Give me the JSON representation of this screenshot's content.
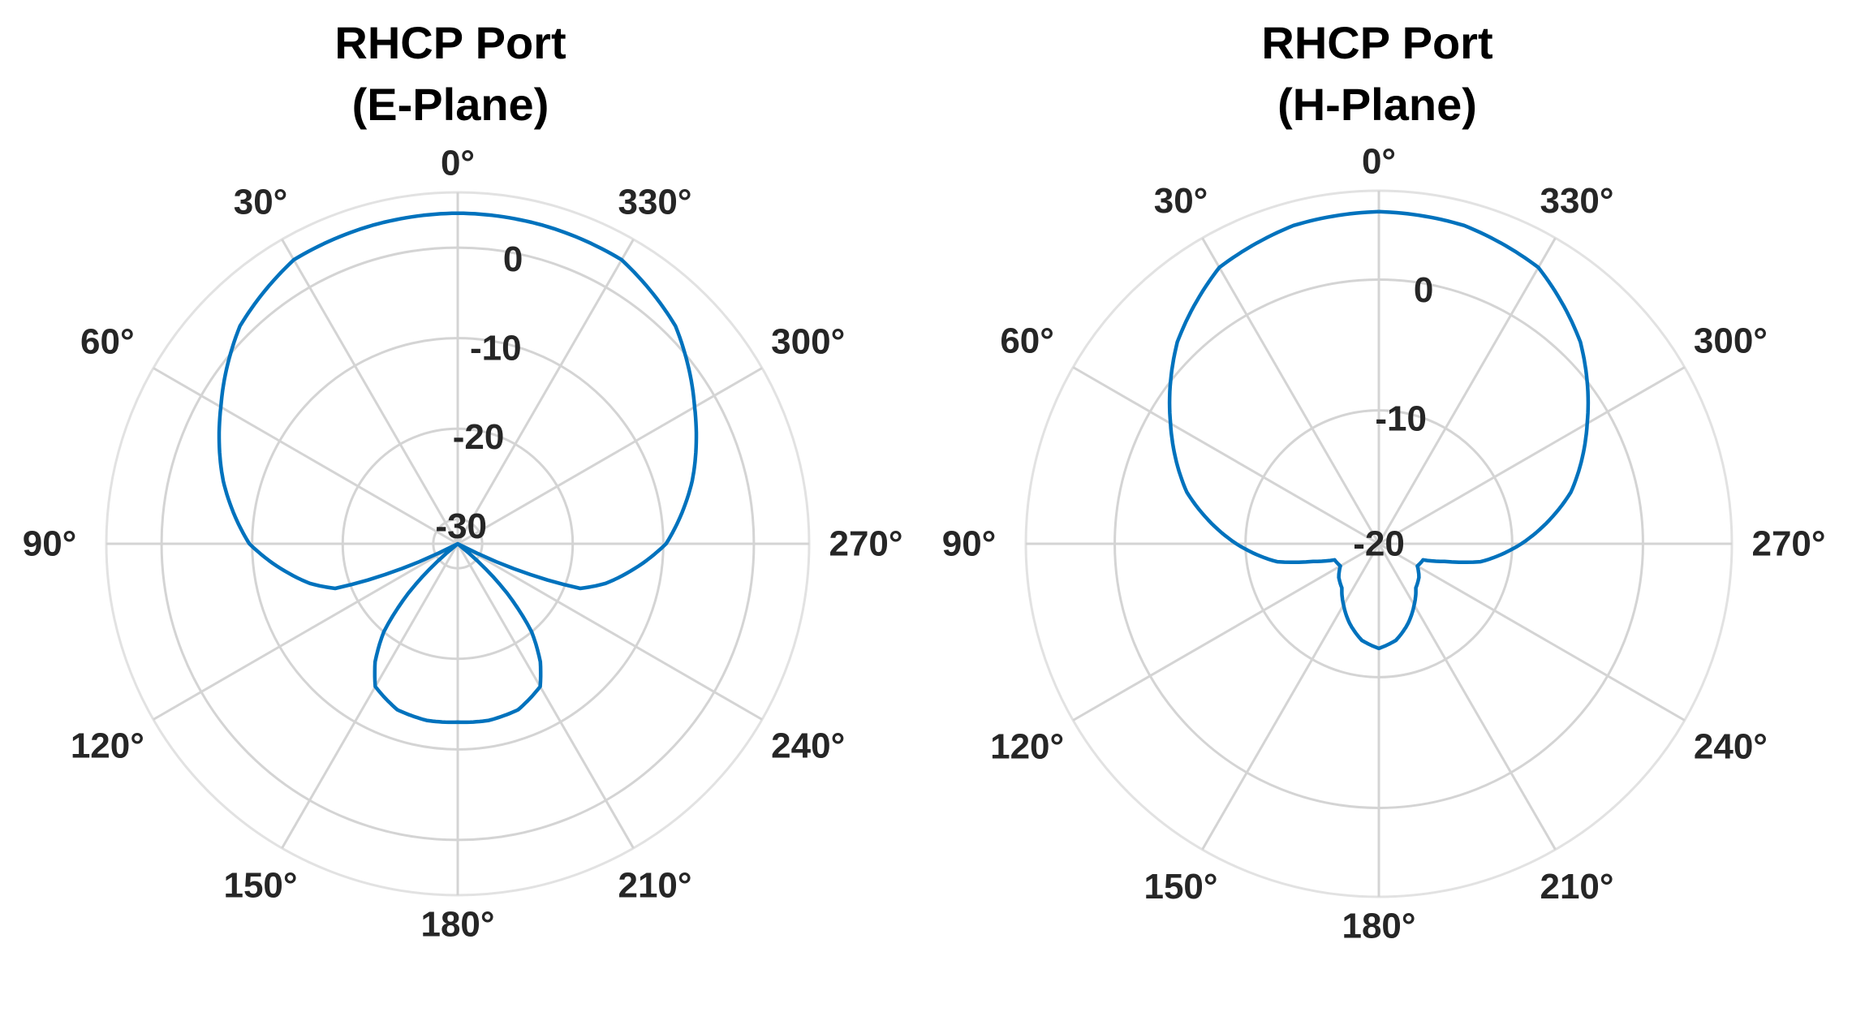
{
  "chart_data": [
    {
      "type": "polar-line",
      "title_line1": "RHCP Port",
      "title_line2": "(E-Plane)",
      "theta_zero": "top",
      "theta_direction": "counterclockwise",
      "theta_ticks": [
        0,
        30,
        60,
        90,
        120,
        150,
        180,
        210,
        240,
        270,
        300,
        330
      ],
      "theta_tick_labels": [
        "0°",
        "30°",
        "60°",
        "90°",
        "120°",
        "150°",
        "180°",
        "210°",
        "240°",
        "270°",
        "300°",
        "330°"
      ],
      "rlim": [
        -32.7,
        6.1
      ],
      "r_ticks": [
        -30,
        -20,
        -10,
        0
      ],
      "r_tick_labels": [
        "-30",
        "-20",
        "-10",
        "0"
      ],
      "grid": true,
      "line_color": "#0072BD",
      "grid_color": "#D4D4D4",
      "series": [
        {
          "theta": [
            0,
            15,
            30,
            45,
            60,
            75,
            90,
            100,
            105,
            110,
            112,
            115,
            120,
            125,
            130,
            135,
            140,
            145,
            150,
            160,
            170,
            180,
            190,
            200,
            210,
            215,
            220,
            225,
            230,
            235,
            240,
            245,
            248,
            250,
            255,
            260,
            270,
            285,
            300,
            315,
            330,
            345,
            360
          ],
          "r": [
            3.8,
            3.7,
            3.5,
            1.3,
            -2.5,
            -5.9,
            -9.7,
            -13.8,
            -15.8,
            -18.3,
            -22,
            -28,
            -40,
            -40,
            -31,
            -25,
            -20,
            -16.8,
            -14.5,
            -13.2,
            -12.9,
            -13.0,
            -12.9,
            -13.2,
            -14.5,
            -16.8,
            -20,
            -25,
            -31,
            -40,
            -40,
            -28,
            -22,
            -18.3,
            -15.8,
            -13.8,
            -9.7,
            -5.9,
            -2.5,
            1.3,
            3.5,
            3.7,
            3.8
          ]
        }
      ]
    },
    {
      "type": "polar-line",
      "title_line1": "RHCP Port",
      "title_line2": "(H-Plane)",
      "theta_zero": "top",
      "theta_direction": "counterclockwise",
      "theta_ticks": [
        0,
        30,
        60,
        90,
        120,
        150,
        180,
        210,
        240,
        270,
        300,
        330
      ],
      "theta_tick_labels": [
        "0°",
        "30°",
        "60°",
        "90°",
        "120°",
        "150°",
        "180°",
        "210°",
        "240°",
        "270°",
        "300°",
        "330°"
      ],
      "rlim": [
        -20.2,
        6.8
      ],
      "r_ticks": [
        -20,
        -10,
        0
      ],
      "r_tick_labels": [
        "-20",
        "-10",
        "0"
      ],
      "grid": true,
      "line_color": "#0072BD",
      "grid_color": "#D4D4D4",
      "series": [
        {
          "theta": [
            0,
            15,
            30,
            45,
            60,
            75,
            90,
            100,
            105,
            110,
            120,
            130,
            140,
            150,
            160,
            170,
            180,
            190,
            200,
            210,
            220,
            230,
            240,
            250,
            255,
            260,
            270,
            285,
            300,
            315,
            330,
            345,
            360
          ],
          "r": [
            5.2,
            5.0,
            4.2,
            1.6,
            -1.8,
            -5.0,
            -9.3,
            -12.3,
            -15.0,
            -16.6,
            -16.8,
            -16.2,
            -15.8,
            -14.8,
            -13.7,
            -12.7,
            -12.2,
            -12.7,
            -13.7,
            -14.8,
            -15.8,
            -16.2,
            -16.8,
            -16.6,
            -15.0,
            -12.3,
            -9.3,
            -5.0,
            -1.8,
            1.6,
            4.2,
            5.0,
            5.2
          ]
        }
      ]
    }
  ]
}
